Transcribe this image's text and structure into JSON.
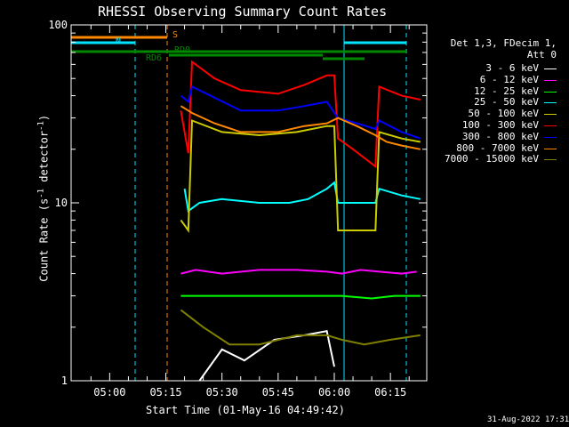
{
  "title": "RHESSI Observing Summary Count Rates",
  "footer_date": "31-Aug-2022 17:31",
  "legend_header": [
    "Det 1,3, FDecim 1,",
    "Att 0"
  ],
  "flags": {
    "S": {
      "label": "S",
      "color": "#ff8800"
    },
    "N": {
      "label": "N",
      "color": "#00e5ff"
    },
    "RD6": {
      "label": "RD6",
      "color": "#008800"
    },
    "RD0": {
      "label": "RD0",
      "color": "#008800"
    }
  },
  "chart_data": {
    "type": "line",
    "title": "RHESSI Observing Summary Count Rates",
    "xlabel": "Start Time (01-May-16 04:49:42)",
    "ylabel": "Count Rate (s⁻¹ detector⁻¹)",
    "ylabel_parts": {
      "main": "Count Rate (s",
      "sup1": "-1",
      "mid": " detector",
      "sup2": "-1",
      "end": ")"
    },
    "yscale": "log",
    "ylim": [
      1,
      100
    ],
    "ytick_labels": [
      "1",
      "10",
      "100"
    ],
    "xtick_labels": [
      "05:00",
      "05:15",
      "05:30",
      "05:45",
      "06:00",
      "06:15"
    ],
    "x_range_minutes": [
      289.7,
      384.7
    ],
    "xticks_minutes": [
      300,
      315,
      330,
      345,
      360,
      375
    ],
    "series": [
      {
        "name": "3 - 6 keV",
        "color": "#ffffff",
        "points": [
          [
            324,
            1.0
          ],
          [
            330,
            1.5
          ],
          [
            336,
            1.3
          ],
          [
            344,
            1.7
          ],
          [
            352,
            1.8
          ],
          [
            358,
            1.9
          ],
          [
            360,
            1.2
          ]
        ]
      },
      {
        "name": "6 - 12 keV",
        "color": "#ff00ff",
        "points": [
          [
            319,
            4.0
          ],
          [
            323,
            4.2
          ],
          [
            330,
            4.0
          ],
          [
            340,
            4.2
          ],
          [
            350,
            4.2
          ],
          [
            358,
            4.1
          ],
          [
            362,
            4.0
          ],
          [
            367,
            4.2
          ],
          [
            372,
            4.1
          ],
          [
            378,
            4.0
          ],
          [
            382,
            4.1
          ]
        ]
      },
      {
        "name": "12 - 25 keV",
        "color": "#00ff00",
        "points": [
          [
            319,
            3.0
          ],
          [
            325,
            3.0
          ],
          [
            335,
            3.0
          ],
          [
            345,
            3.0
          ],
          [
            355,
            3.0
          ],
          [
            362,
            3.0
          ],
          [
            370,
            2.9
          ],
          [
            376,
            3.0
          ],
          [
            383,
            3.0
          ]
        ]
      },
      {
        "name": "25 - 50 keV",
        "color": "#00ffff",
        "points": [
          [
            320,
            12.0
          ],
          [
            321,
            9.0
          ],
          [
            324,
            10.0
          ],
          [
            330,
            10.5
          ],
          [
            340,
            10.0
          ],
          [
            348,
            10.0
          ],
          [
            353,
            10.5
          ],
          [
            358,
            12.0
          ],
          [
            360,
            13.0
          ],
          [
            361,
            10.0
          ],
          [
            368,
            10.0
          ],
          [
            371,
            10.0
          ],
          [
            372,
            12.0
          ],
          [
            378,
            11.0
          ],
          [
            383,
            10.5
          ]
        ]
      },
      {
        "name": "50 - 100 keV",
        "color": "#cccc00",
        "points": [
          [
            319,
            8.0
          ],
          [
            321,
            7.0
          ],
          [
            322,
            29.0
          ],
          [
            330,
            25.0
          ],
          [
            340,
            24.0
          ],
          [
            350,
            25.0
          ],
          [
            358,
            27.0
          ],
          [
            360,
            27.0
          ],
          [
            361,
            7.0
          ],
          [
            364,
            7.0
          ],
          [
            371,
            7.0
          ],
          [
            372,
            25.0
          ],
          [
            378,
            23.0
          ],
          [
            383,
            22.0
          ]
        ]
      },
      {
        "name": "100 - 300 keV",
        "color": "#ff0000",
        "points": [
          [
            319,
            33.0
          ],
          [
            321,
            19.0
          ],
          [
            322,
            62.0
          ],
          [
            328,
            50.0
          ],
          [
            335,
            43.0
          ],
          [
            345,
            41.0
          ],
          [
            352,
            46.0
          ],
          [
            358,
            52.0
          ],
          [
            360,
            52.0
          ],
          [
            361,
            23.0
          ],
          [
            365,
            20.0
          ],
          [
            371,
            16.0
          ],
          [
            372,
            45.0
          ],
          [
            378,
            40.0
          ],
          [
            383,
            38.0
          ]
        ]
      },
      {
        "name": "300 - 800 keV",
        "color": "#0000ff",
        "points": [
          [
            319,
            40.0
          ],
          [
            321,
            37.0
          ],
          [
            322,
            45.0
          ],
          [
            328,
            39.0
          ],
          [
            335,
            33.0
          ],
          [
            345,
            33.0
          ],
          [
            352,
            35.0
          ],
          [
            358,
            37.0
          ],
          [
            361,
            30.0
          ],
          [
            366,
            28.0
          ],
          [
            371,
            26.0
          ],
          [
            372,
            29.0
          ],
          [
            378,
            25.0
          ],
          [
            383,
            23.0
          ]
        ]
      },
      {
        "name": "800 - 7000 keV",
        "color": "#ff8800",
        "points": [
          [
            319,
            35.0
          ],
          [
            321,
            33.0
          ],
          [
            322,
            32.0
          ],
          [
            328,
            28.0
          ],
          [
            335,
            25.0
          ],
          [
            345,
            25.0
          ],
          [
            352,
            27.0
          ],
          [
            358,
            28.0
          ],
          [
            361,
            30.0
          ],
          [
            366,
            27.0
          ],
          [
            371,
            24.0
          ],
          [
            374,
            22.0
          ],
          [
            378,
            21.0
          ],
          [
            383,
            20.0
          ]
        ]
      },
      {
        "name": "7000 - 15000 keV",
        "color": "#808000",
        "points": [
          [
            319,
            2.5
          ],
          [
            325,
            2.0
          ],
          [
            332,
            1.6
          ],
          [
            340,
            1.6
          ],
          [
            350,
            1.8
          ],
          [
            358,
            1.8
          ],
          [
            362,
            1.7
          ],
          [
            368,
            1.6
          ],
          [
            375,
            1.7
          ],
          [
            383,
            1.8
          ]
        ]
      }
    ]
  }
}
